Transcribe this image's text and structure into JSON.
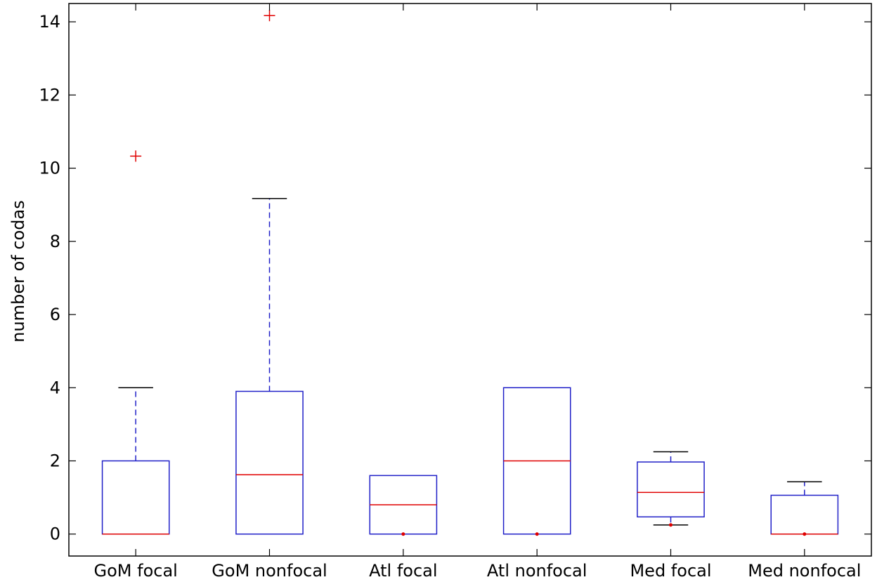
{
  "chart_data": {
    "type": "boxplot",
    "title": "",
    "xlabel": "",
    "ylabel": "number of codas",
    "ylim": [
      -0.6,
      14.5
    ],
    "yticks": [
      0,
      2,
      4,
      6,
      8,
      10,
      12,
      14
    ],
    "ytick_labels": [
      "0",
      "2",
      "4",
      "6",
      "8",
      "10",
      "12",
      "14"
    ],
    "categories": [
      "GoM focal",
      "GoM nonfocal",
      "Atl focal",
      "Atl nonfocal",
      "Med focal",
      "Med nonfocal"
    ],
    "grid": false,
    "legend": "none",
    "colors": {
      "box": "#2020c8",
      "median": "#e00000",
      "outlier": "#e00000",
      "whisker_cap": "#000000",
      "axis": "#000000"
    },
    "boxes": [
      {
        "category": "GoM focal",
        "q1": 0,
        "median": 0,
        "q3": 2,
        "whisker_low": 0,
        "whisker_high": 4,
        "outliers": [
          10.33
        ]
      },
      {
        "category": "GoM nonfocal",
        "q1": 0,
        "median": 1.62,
        "q3": 3.9,
        "whisker_low": 0,
        "whisker_high": 9.17,
        "outliers": [
          14.17
        ]
      },
      {
        "category": "Atl focal",
        "q1": 0,
        "median": 0.8,
        "q3": 1.6,
        "whisker_low": 0,
        "whisker_high": 1.6,
        "outliers": [
          0
        ]
      },
      {
        "category": "Atl nonfocal",
        "q1": 0,
        "median": 2,
        "q3": 4,
        "whisker_low": 0,
        "whisker_high": 4,
        "outliers": [
          0
        ]
      },
      {
        "category": "Med focal",
        "q1": 0.47,
        "median": 1.14,
        "q3": 1.97,
        "whisker_low": 0.25,
        "whisker_high": 2.25,
        "outliers": [
          0.25
        ]
      },
      {
        "category": "Med nonfocal",
        "q1": 0,
        "median": 0,
        "q3": 1.06,
        "whisker_low": 0,
        "whisker_high": 1.43,
        "outliers": [
          0
        ]
      }
    ]
  }
}
